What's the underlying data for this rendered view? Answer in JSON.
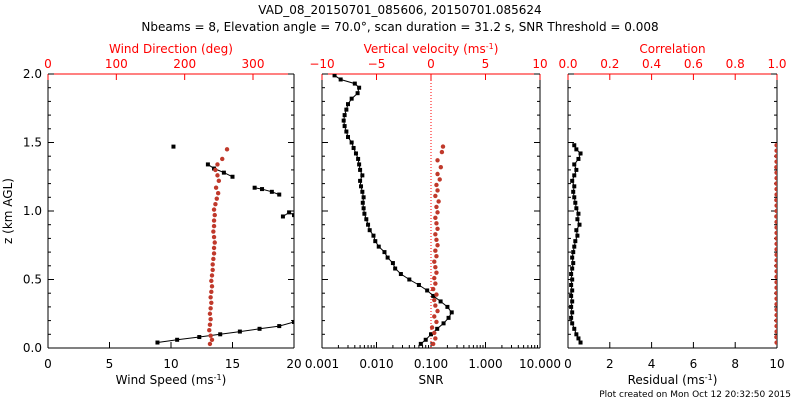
{
  "title_line1": "VAD_08_20150701_085606, 20150701.085624",
  "title_line2": "Nbeams = 8, Elevation angle = 70.0°, scan duration = 31.2 s, SNR Threshold = 0.008",
  "footer": "Plot created on Mon Oct 12 20:32:50 2015",
  "colors": {
    "black": "#000000",
    "red": "#c0392b",
    "axis_red": "#ff0000"
  },
  "chart_data": [
    {
      "id": "panel1",
      "type": "scatter",
      "ylabel": "z (km AGL)",
      "ylim": [
        0,
        2
      ],
      "yticks": [
        0.0,
        0.5,
        1.0,
        1.5,
        2.0
      ],
      "yticklabels": [
        "0.0",
        "0.5",
        "1.0",
        "1.5",
        "2.0"
      ],
      "bottom_axis": {
        "label": "Wind Speed (ms",
        "label_sup": "-1",
        "label_end": ")",
        "range": [
          0,
          20
        ],
        "ticks": [
          0,
          5,
          10,
          15,
          20
        ],
        "ticklabels": [
          "0",
          "5",
          "10",
          "15",
          "20"
        ],
        "scale": "linear"
      },
      "top_axis": {
        "label": "Wind Direction (deg)",
        "range": [
          0,
          360
        ],
        "ticks": [
          0,
          100,
          200,
          300
        ],
        "ticklabels": [
          "0",
          "100",
          "200",
          "300"
        ],
        "scale": "linear"
      },
      "series": [
        {
          "axis": "bottom",
          "color": "black",
          "line": true,
          "points": [
            [
              8.9,
              0.04
            ],
            [
              10.5,
              0.06
            ],
            [
              12.3,
              0.08
            ],
            [
              14.0,
              0.1
            ],
            [
              15.6,
              0.12
            ],
            [
              17.2,
              0.14
            ],
            [
              18.8,
              0.16
            ],
            [
              20.0,
              0.19
            ]
          ]
        },
        {
          "axis": "bottom",
          "color": "black",
          "line": false,
          "points": [
            [
              10.2,
              1.47
            ]
          ]
        },
        {
          "axis": "bottom",
          "color": "black",
          "line": true,
          "points": [
            [
              13.0,
              1.34
            ],
            [
              13.5,
              1.31
            ],
            [
              14.3,
              1.28
            ],
            [
              15.0,
              1.25
            ]
          ]
        },
        {
          "axis": "bottom",
          "color": "black",
          "line": true,
          "points": [
            [
              16.8,
              1.17
            ],
            [
              17.4,
              1.16
            ],
            [
              18.2,
              1.14
            ],
            [
              18.8,
              1.12
            ]
          ]
        },
        {
          "axis": "bottom",
          "color": "black",
          "line": true,
          "points": [
            [
              19.1,
              0.96
            ],
            [
              19.6,
              0.99
            ],
            [
              20.0,
              0.97
            ]
          ]
        },
        {
          "axis": "top",
          "color": "red",
          "line": false,
          "points": [
            [
              237,
              0.03
            ],
            [
              240,
              0.06
            ],
            [
              238,
              0.09
            ],
            [
              236,
              0.13
            ],
            [
              237,
              0.17
            ],
            [
              238,
              0.21
            ],
            [
              237,
              0.25
            ],
            [
              238,
              0.29
            ],
            [
              239,
              0.33
            ],
            [
              238,
              0.37
            ],
            [
              239,
              0.41
            ],
            [
              240,
              0.45
            ],
            [
              239,
              0.49
            ],
            [
              240,
              0.53
            ],
            [
              241,
              0.57
            ],
            [
              241,
              0.61
            ],
            [
              242,
              0.65
            ],
            [
              243,
              0.69
            ],
            [
              243,
              0.73
            ],
            [
              244,
              0.77
            ],
            [
              243,
              0.81
            ],
            [
              242,
              0.85
            ],
            [
              243,
              0.89
            ],
            [
              243,
              0.93
            ],
            [
              244,
              0.97
            ],
            [
              243,
              1.01
            ],
            [
              245,
              1.05
            ],
            [
              247,
              1.09
            ],
            [
              249,
              1.13
            ],
            [
              246,
              1.17
            ],
            [
              250,
              1.22
            ],
            [
              248,
              1.26
            ],
            [
              245,
              1.3
            ],
            [
              248,
              1.34
            ],
            [
              255,
              1.38
            ],
            [
              262,
              1.45
            ]
          ]
        }
      ]
    },
    {
      "id": "panel2",
      "type": "scatter",
      "ylim": [
        0,
        2
      ],
      "bottom_axis": {
        "label": "SNR",
        "range": [
          0.001,
          10
        ],
        "ticks": [
          0.001,
          0.01,
          0.1,
          1,
          10
        ],
        "ticklabels": [
          "0.001",
          "0.010",
          "0.100",
          "1.000",
          "10.000"
        ],
        "scale": "log"
      },
      "top_axis": {
        "label": "Vertical velocity (ms",
        "label_sup": "-1",
        "label_end": ")",
        "range": [
          -10,
          10
        ],
        "ticks": [
          -10,
          -5,
          0,
          5,
          10
        ],
        "ticklabels": [
          "−10",
          "−5",
          "0",
          "5",
          "10"
        ],
        "scale": "linear"
      },
      "zero_line": {
        "axis": "top",
        "value": 0,
        "style": "dotted"
      },
      "series": [
        {
          "axis": "bottom",
          "color": "black",
          "line": true,
          "points": [
            [
              0.065,
              0.03
            ],
            [
              0.08,
              0.06
            ],
            [
              0.1,
              0.1
            ],
            [
              0.13,
              0.14
            ],
            [
              0.17,
              0.18
            ],
            [
              0.21,
              0.22
            ],
            [
              0.24,
              0.26
            ],
            [
              0.2,
              0.3
            ],
            [
              0.15,
              0.34
            ],
            [
              0.11,
              0.38
            ],
            [
              0.085,
              0.42
            ],
            [
              0.06,
              0.46
            ],
            [
              0.04,
              0.5
            ],
            [
              0.028,
              0.54
            ],
            [
              0.022,
              0.58
            ],
            [
              0.02,
              0.62
            ],
            [
              0.016,
              0.66
            ],
            [
              0.014,
              0.7
            ],
            [
              0.011,
              0.74
            ],
            [
              0.0095,
              0.78
            ],
            [
              0.0088,
              0.82
            ],
            [
              0.0075,
              0.86
            ],
            [
              0.007,
              0.9
            ],
            [
              0.0065,
              0.94
            ],
            [
              0.006,
              0.98
            ],
            [
              0.0058,
              1.02
            ],
            [
              0.0056,
              1.06
            ],
            [
              0.0058,
              1.1
            ],
            [
              0.0055,
              1.14
            ],
            [
              0.0052,
              1.18
            ],
            [
              0.005,
              1.22
            ],
            [
              0.0055,
              1.26
            ],
            [
              0.005,
              1.3
            ],
            [
              0.0048,
              1.34
            ],
            [
              0.0046,
              1.38
            ],
            [
              0.0042,
              1.42
            ],
            [
              0.0038,
              1.46
            ],
            [
              0.0035,
              1.5
            ],
            [
              0.003,
              1.54
            ],
            [
              0.0028,
              1.58
            ],
            [
              0.0026,
              1.62
            ],
            [
              0.0025,
              1.66
            ],
            [
              0.0026,
              1.7
            ],
            [
              0.0028,
              1.74
            ],
            [
              0.003,
              1.78
            ],
            [
              0.0035,
              1.82
            ],
            [
              0.0045,
              1.86
            ],
            [
              0.0048,
              1.9
            ],
            [
              0.004,
              1.93
            ],
            [
              0.0022,
              1.96
            ],
            [
              0.0017,
              1.99
            ]
          ]
        },
        {
          "axis": "top",
          "color": "red",
          "line": false,
          "points": [
            [
              0.2,
              0.03
            ],
            [
              0.4,
              0.07
            ],
            [
              0.3,
              0.11
            ],
            [
              0.1,
              0.15
            ],
            [
              0.5,
              0.19
            ],
            [
              0.3,
              0.23
            ],
            [
              0.6,
              0.27
            ],
            [
              0.4,
              0.31
            ],
            [
              0.3,
              0.35
            ],
            [
              0.5,
              0.39
            ],
            [
              0.2,
              0.43
            ],
            [
              0.4,
              0.47
            ],
            [
              0.3,
              0.51
            ],
            [
              0.5,
              0.55
            ],
            [
              0.4,
              0.59
            ],
            [
              0.3,
              0.63
            ],
            [
              0.5,
              0.67
            ],
            [
              0.4,
              0.71
            ],
            [
              0.6,
              0.75
            ],
            [
              0.5,
              0.79
            ],
            [
              0.4,
              0.83
            ],
            [
              0.6,
              0.87
            ],
            [
              0.5,
              0.91
            ],
            [
              0.4,
              0.95
            ],
            [
              0.6,
              0.99
            ],
            [
              0.5,
              1.03
            ],
            [
              0.7,
              1.07
            ],
            [
              0.4,
              1.11
            ],
            [
              0.6,
              1.15
            ],
            [
              0.5,
              1.19
            ],
            [
              0.8,
              1.23
            ],
            [
              0.6,
              1.27
            ],
            [
              0.9,
              1.32
            ],
            [
              0.6,
              1.37
            ],
            [
              1.0,
              1.43
            ],
            [
              1.1,
              1.47
            ]
          ]
        }
      ]
    },
    {
      "id": "panel3",
      "type": "scatter",
      "ylim": [
        0,
        2
      ],
      "bottom_axis": {
        "label": "Residual (ms",
        "label_sup": "-1",
        "label_end": ")",
        "range": [
          0,
          10
        ],
        "ticks": [
          0,
          2,
          4,
          6,
          8,
          10
        ],
        "ticklabels": [
          "0",
          "2",
          "4",
          "6",
          "8",
          "10"
        ],
        "scale": "linear"
      },
      "top_axis": {
        "label": "Correlation",
        "range": [
          0,
          1
        ],
        "ticks": [
          0,
          0.2,
          0.4,
          0.6,
          0.8,
          1.0
        ],
        "ticklabels": [
          "0.0",
          "0.2",
          "0.4",
          "0.6",
          "0.8",
          "1.0"
        ],
        "scale": "linear"
      },
      "series": [
        {
          "axis": "bottom",
          "color": "black",
          "line": true,
          "points": [
            [
              0.6,
              0.04
            ],
            [
              0.5,
              0.07
            ],
            [
              0.4,
              0.1
            ],
            [
              0.3,
              0.14
            ],
            [
              0.2,
              0.18
            ],
            [
              0.15,
              0.22
            ],
            [
              0.2,
              0.26
            ],
            [
              0.15,
              0.3
            ],
            [
              0.2,
              0.34
            ],
            [
              0.15,
              0.38
            ],
            [
              0.2,
              0.42
            ],
            [
              0.15,
              0.46
            ],
            [
              0.2,
              0.5
            ],
            [
              0.15,
              0.54
            ],
            [
              0.2,
              0.58
            ],
            [
              0.25,
              0.62
            ],
            [
              0.2,
              0.66
            ],
            [
              0.25,
              0.7
            ],
            [
              0.3,
              0.74
            ],
            [
              0.35,
              0.78
            ],
            [
              0.45,
              0.82
            ],
            [
              0.4,
              0.86
            ],
            [
              0.55,
              0.9
            ],
            [
              0.45,
              0.94
            ],
            [
              0.5,
              0.98
            ],
            [
              0.4,
              1.02
            ],
            [
              0.35,
              1.06
            ],
            [
              0.3,
              1.1
            ],
            [
              0.25,
              1.14
            ],
            [
              0.3,
              1.18
            ],
            [
              0.2,
              1.22
            ],
            [
              0.3,
              1.26
            ],
            [
              0.4,
              1.3
            ],
            [
              0.3,
              1.34
            ],
            [
              0.5,
              1.38
            ],
            [
              0.6,
              1.42
            ],
            [
              0.4,
              1.45
            ],
            [
              0.3,
              1.48
            ]
          ]
        },
        {
          "axis": "top",
          "color": "red",
          "line": false,
          "points": [
            [
              0.998,
              0.04
            ],
            [
              0.997,
              0.08
            ],
            [
              0.998,
              0.12
            ],
            [
              0.998,
              0.16
            ],
            [
              0.998,
              0.2
            ],
            [
              0.998,
              0.24
            ],
            [
              0.998,
              0.28
            ],
            [
              0.998,
              0.32
            ],
            [
              0.998,
              0.36
            ],
            [
              0.998,
              0.4
            ],
            [
              0.998,
              0.44
            ],
            [
              0.998,
              0.48
            ],
            [
              0.998,
              0.52
            ],
            [
              0.998,
              0.56
            ],
            [
              0.998,
              0.6
            ],
            [
              0.998,
              0.64
            ],
            [
              0.998,
              0.68
            ],
            [
              0.998,
              0.72
            ],
            [
              0.998,
              0.76
            ],
            [
              0.998,
              0.8
            ],
            [
              0.998,
              0.84
            ],
            [
              0.998,
              0.88
            ],
            [
              0.998,
              0.92
            ],
            [
              0.997,
              0.96
            ],
            [
              0.998,
              1.0
            ],
            [
              0.998,
              1.04
            ],
            [
              0.997,
              1.08
            ],
            [
              0.998,
              1.12
            ],
            [
              0.998,
              1.16
            ],
            [
              0.997,
              1.2
            ],
            [
              0.998,
              1.24
            ],
            [
              0.998,
              1.28
            ],
            [
              0.997,
              1.32
            ],
            [
              0.998,
              1.36
            ],
            [
              0.998,
              1.4
            ],
            [
              0.998,
              1.44
            ],
            [
              0.998,
              1.48
            ]
          ]
        }
      ]
    }
  ]
}
